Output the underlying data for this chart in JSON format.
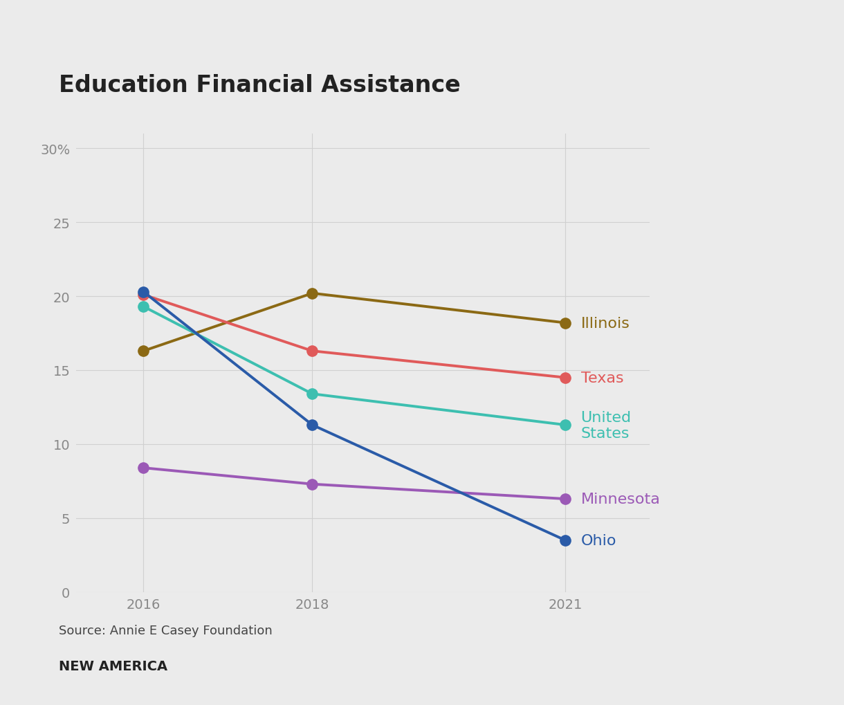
{
  "title": "Education Financial Assistance",
  "source": "Source: Annie E Casey Foundation",
  "footer": "NEW AMERICA",
  "years": [
    2016,
    2018,
    2021
  ],
  "series": [
    {
      "label": "Illinois",
      "values": [
        16.3,
        20.2,
        18.2
      ],
      "color": "#8B6914"
    },
    {
      "label": "Texas",
      "values": [
        20.1,
        16.3,
        14.5
      ],
      "color": "#E05A5A"
    },
    {
      "label": "United\nStates",
      "values": [
        19.3,
        13.4,
        11.3
      ],
      "color": "#3DBFB0"
    },
    {
      "label": "Minnesota",
      "values": [
        8.4,
        7.3,
        6.3
      ],
      "color": "#9B59B6"
    },
    {
      "label": "Ohio",
      "values": [
        20.3,
        11.3,
        3.5
      ],
      "color": "#2A5BA8"
    }
  ],
  "ylim": [
    0,
    31
  ],
  "yticks": [
    0,
    5,
    10,
    15,
    20,
    25,
    30
  ],
  "ytick_labels": [
    "0",
    "5",
    "10",
    "15",
    "20",
    "25",
    "30%"
  ],
  "background_color": "#EBEBEB",
  "plot_bg_color": "#EBEBEB",
  "grid_color": "#D0D0D0",
  "title_fontsize": 24,
  "label_fontsize": 16,
  "tick_fontsize": 14,
  "source_fontsize": 13,
  "footer_fontsize": 14,
  "linewidth": 2.8,
  "markersize": 11
}
